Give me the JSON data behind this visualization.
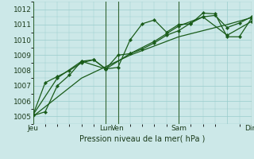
{
  "xlabel": "Pression niveau de la mer( hPa )",
  "bg_color": "#cce8e8",
  "grid_color": "#99cccc",
  "line_color": "#1a5c1a",
  "vline_color": "#336633",
  "ylim": [
    1004.5,
    1012.5
  ],
  "xlim": [
    0,
    108
  ],
  "yticks": [
    1005,
    1006,
    1007,
    1008,
    1009,
    1010,
    1011,
    1012
  ],
  "xtick_positions": [
    0,
    36,
    42,
    72,
    96,
    108
  ],
  "xtick_labels": [
    "Jeu",
    "Lun",
    "Ven",
    "Sam",
    "",
    "Dim"
  ],
  "vlines": [
    0,
    36,
    42,
    72,
    108
  ],
  "series1_x": [
    0,
    6,
    12,
    18,
    24,
    30,
    36,
    42,
    48,
    54,
    60,
    66,
    72,
    78,
    84,
    90,
    96,
    102,
    108
  ],
  "series1_y": [
    1005.05,
    1005.3,
    1007.0,
    1007.7,
    1008.6,
    1008.7,
    1008.1,
    1008.2,
    1010.0,
    1011.05,
    1011.3,
    1010.5,
    1011.0,
    1011.05,
    1011.75,
    1011.7,
    1010.2,
    1010.2,
    1011.4
  ],
  "series2_x": [
    0,
    6,
    12,
    18,
    24,
    30,
    36,
    42,
    48,
    54,
    60,
    66,
    72,
    78,
    84,
    90,
    96,
    102,
    108
  ],
  "series2_y": [
    1005.1,
    1007.2,
    1007.6,
    1008.0,
    1008.5,
    1008.7,
    1008.1,
    1009.0,
    1009.1,
    1009.4,
    1009.8,
    1010.3,
    1010.6,
    1011.1,
    1011.5,
    1011.6,
    1010.8,
    1011.1,
    1011.5
  ],
  "series3_x": [
    0,
    12,
    24,
    36,
    48,
    60,
    72,
    84,
    96,
    108
  ],
  "series3_y": [
    1005.1,
    1007.5,
    1008.6,
    1008.1,
    1009.1,
    1009.9,
    1010.9,
    1011.5,
    1010.3,
    1011.2
  ],
  "series4_x": [
    0,
    24,
    48,
    72,
    96,
    108
  ],
  "series4_y": [
    1005.0,
    1007.5,
    1009.0,
    1010.2,
    1011.0,
    1011.45
  ],
  "marker_size": 2.2,
  "line_width": 0.9
}
